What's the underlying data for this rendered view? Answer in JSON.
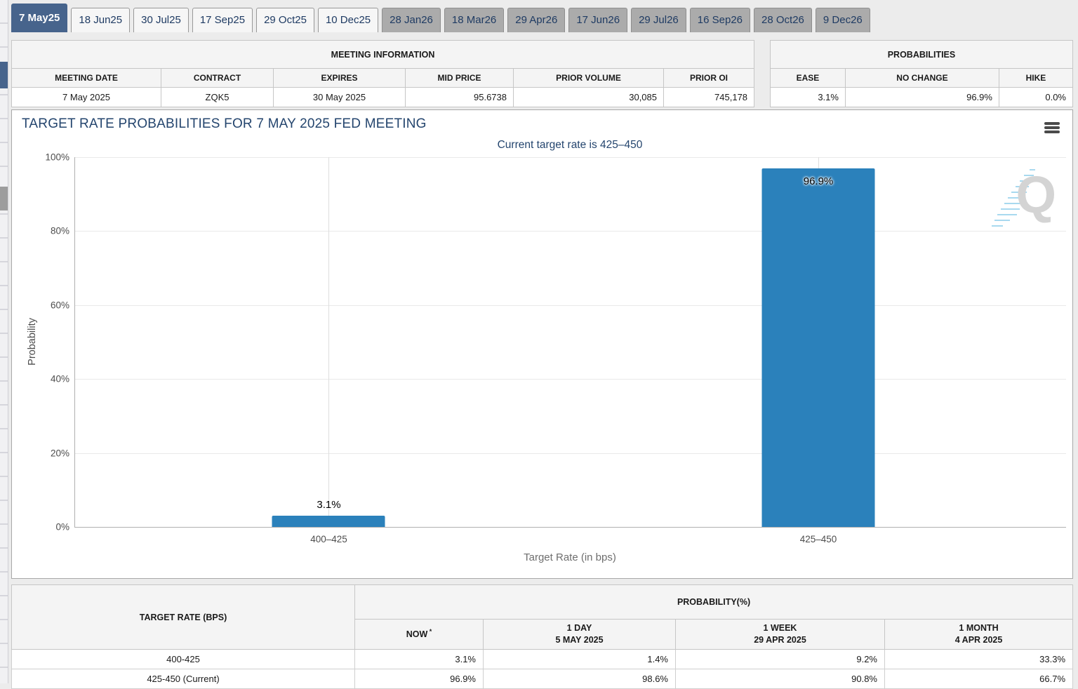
{
  "tabs": {
    "items": [
      {
        "label": "7 May25",
        "state": "active"
      },
      {
        "label": "18 Jun25",
        "state": "near"
      },
      {
        "label": "30 Jul25",
        "state": "near"
      },
      {
        "label": "17 Sep25",
        "state": "near"
      },
      {
        "label": "29 Oct25",
        "state": "near"
      },
      {
        "label": "10 Dec25",
        "state": "near"
      },
      {
        "label": "28 Jan26",
        "state": "far"
      },
      {
        "label": "18 Mar26",
        "state": "far"
      },
      {
        "label": "29 Apr26",
        "state": "far"
      },
      {
        "label": "17 Jun26",
        "state": "far"
      },
      {
        "label": "29 Jul26",
        "state": "far"
      },
      {
        "label": "16 Sep26",
        "state": "far"
      },
      {
        "label": "28 Oct26",
        "state": "far"
      },
      {
        "label": "9 Dec26",
        "state": "far"
      }
    ]
  },
  "meeting_info": {
    "title": "MEETING INFORMATION",
    "headers": [
      "MEETING DATE",
      "CONTRACT",
      "EXPIRES",
      "MID PRICE",
      "PRIOR VOLUME",
      "PRIOR OI"
    ],
    "values": [
      "7 May 2025",
      "ZQK5",
      "30 May 2025",
      "95.6738",
      "30,085",
      "745,178"
    ]
  },
  "probabilities": {
    "title": "PROBABILITIES",
    "headers": [
      "EASE",
      "NO CHANGE",
      "HIKE"
    ],
    "values": [
      "3.1%",
      "96.9%",
      "0.0%"
    ]
  },
  "chart": {
    "title": "TARGET RATE PROBABILITIES FOR 7 MAY 2025 FED MEETING",
    "subtitle": "Current target rate is 425–450",
    "watermark_letter": "Q",
    "menu_icon": "hamburger-menu-icon"
  },
  "chart_data": {
    "type": "bar",
    "title": "TARGET RATE PROBABILITIES FOR 7 MAY 2025 FED MEETING",
    "subtitle": "Current target rate is 425–450",
    "categories": [
      "400–425",
      "425–450"
    ],
    "values": [
      3.1,
      96.9
    ],
    "value_labels": [
      "3.1%",
      "96.9%"
    ],
    "xlabel": "Target Rate (in bps)",
    "ylabel": "Probability",
    "ylim": [
      0,
      100
    ],
    "ytick_labels": [
      "100%",
      "80%",
      "60%",
      "40%",
      "20%",
      "0%"
    ],
    "grid": true,
    "legend": false,
    "bar_color": "#2b81bb"
  },
  "bottom_table": {
    "col1_header": "TARGET RATE (BPS)",
    "group_header": "PROBABILITY(%)",
    "col_headers": [
      {
        "line1": "NOW",
        "sup": "*",
        "line2": ""
      },
      {
        "line1": "1 DAY",
        "sup": "",
        "line2": "5 MAY 2025"
      },
      {
        "line1": "1 WEEK",
        "sup": "",
        "line2": "29 APR 2025"
      },
      {
        "line1": "1 MONTH",
        "sup": "",
        "line2": "4 APR 2025"
      }
    ],
    "rows": [
      {
        "target": "400-425",
        "cells": [
          "3.1%",
          "1.4%",
          "9.2%",
          "33.3%"
        ]
      },
      {
        "target": "425-450 (Current)",
        "cells": [
          "96.9%",
          "98.6%",
          "90.8%",
          "66.7%"
        ]
      }
    ]
  },
  "colors": {
    "accent_tab": "#47648c",
    "bar": "#2b81bb",
    "title_text": "#24456e",
    "now_highlight": "#faf8d2",
    "gray_tab": "#ababab"
  }
}
